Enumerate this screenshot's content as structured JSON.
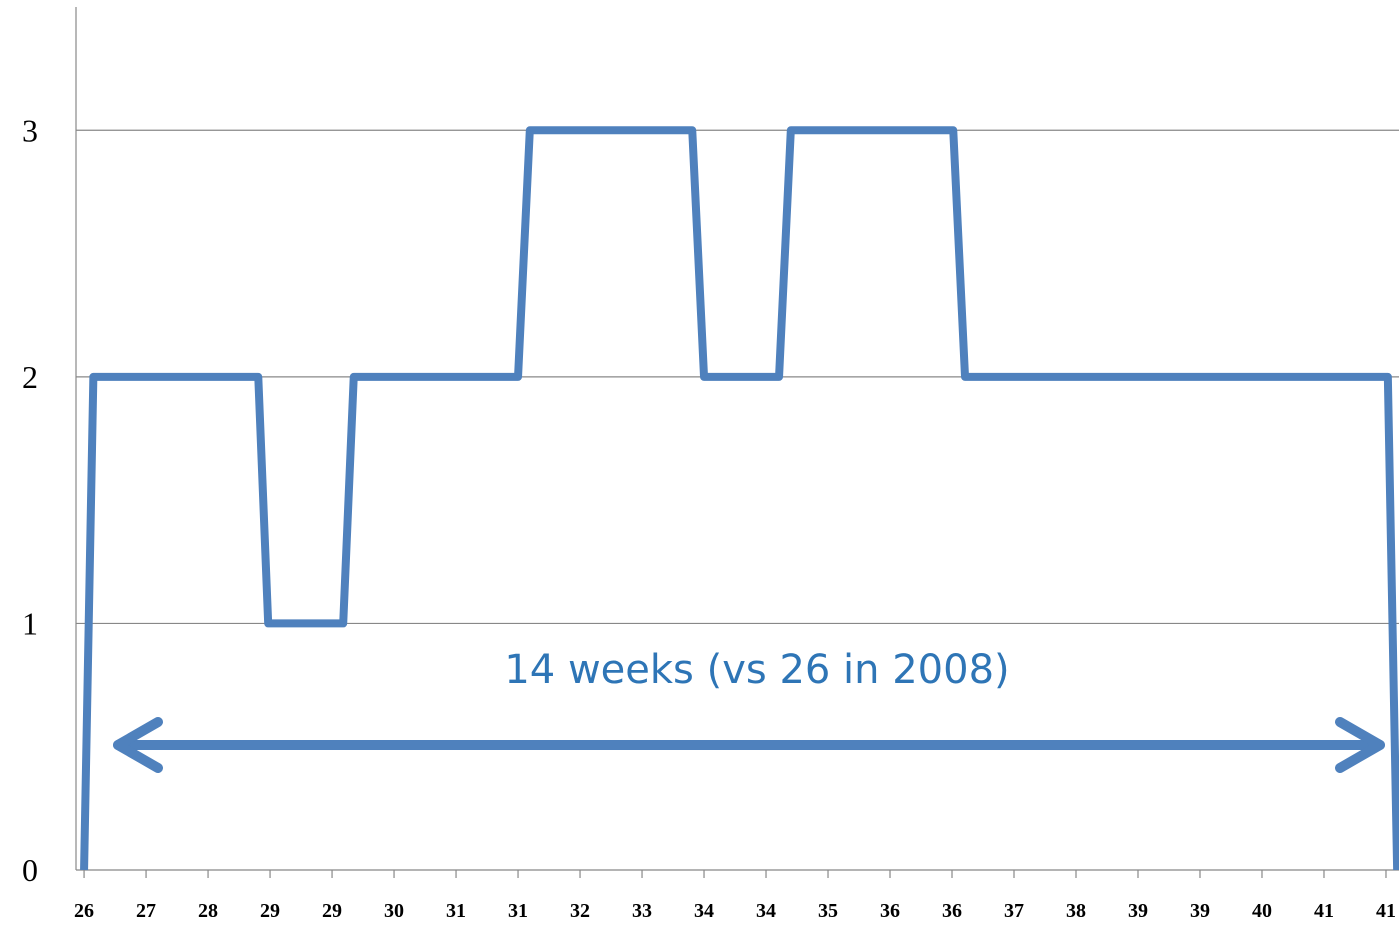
{
  "chart_data": {
    "type": "line",
    "xticks": [
      {
        "value": 0,
        "label": "26"
      },
      {
        "value": 1,
        "label": "27"
      },
      {
        "value": 2,
        "label": "28"
      },
      {
        "value": 3,
        "label": "29"
      },
      {
        "value": 4,
        "label": "29"
      },
      {
        "value": 5,
        "label": "30"
      },
      {
        "value": 6,
        "label": "31"
      },
      {
        "value": 7,
        "label": "31"
      },
      {
        "value": 8,
        "label": "32"
      },
      {
        "value": 9,
        "label": "33"
      },
      {
        "value": 10,
        "label": "34"
      },
      {
        "value": 11,
        "label": "34"
      },
      {
        "value": 12,
        "label": "35"
      },
      {
        "value": 13,
        "label": "36"
      },
      {
        "value": 14,
        "label": "36"
      },
      {
        "value": 15,
        "label": "37"
      },
      {
        "value": 16,
        "label": "38"
      },
      {
        "value": 17,
        "label": "39"
      },
      {
        "value": 18,
        "label": "39"
      },
      {
        "value": 19,
        "label": "40"
      },
      {
        "value": 20,
        "label": "41"
      },
      {
        "value": 21,
        "label": "41"
      }
    ],
    "xlim": [
      -0.13,
      21.21
    ],
    "x": [
      0,
      0.15,
      2.81,
      2.97,
      4.18,
      4.35,
      7.0,
      7.19,
      9.81,
      10.0,
      11.21,
      11.4,
      14.02,
      14.21,
      21.03,
      21.18
    ],
    "series": [
      {
        "color": "#4f81bd",
        "values": [
          0,
          2,
          2,
          1,
          1,
          2,
          2,
          3,
          3,
          2,
          2,
          3,
          3,
          2,
          2,
          0
        ]
      }
    ],
    "ylim": [
      0,
      3.5
    ],
    "yticks": [
      0,
      1,
      2,
      3
    ],
    "grid": true,
    "annotation": "14 weeks (vs 26 in 2008)"
  }
}
